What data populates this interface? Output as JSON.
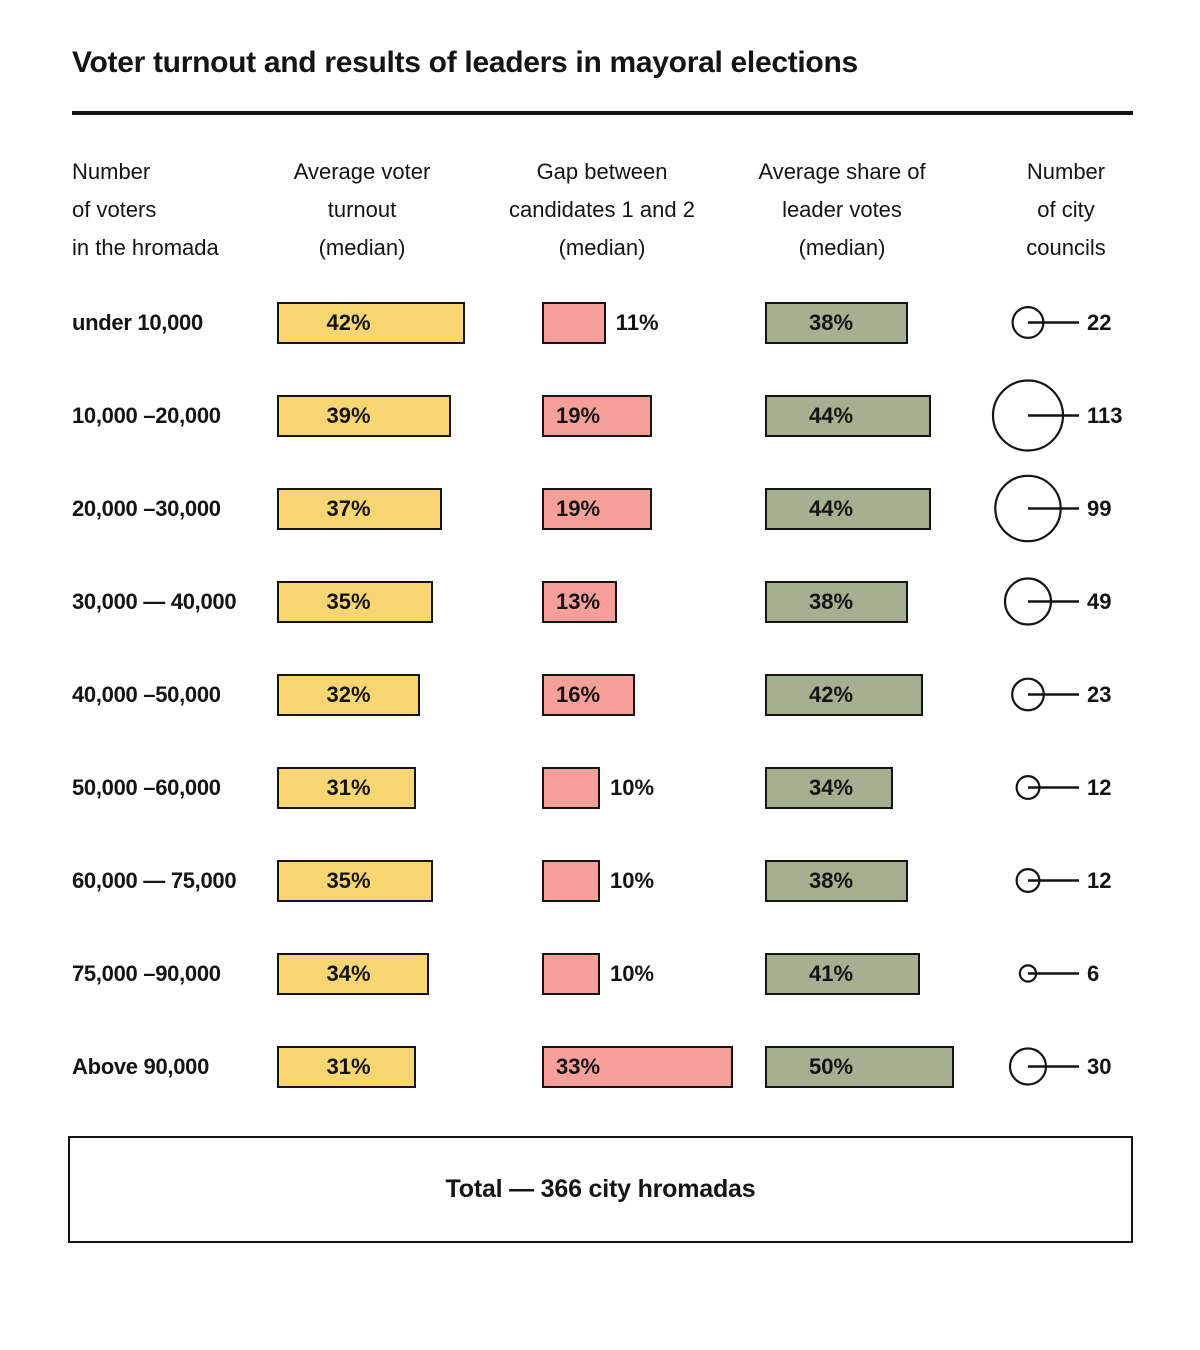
{
  "title": "Voter turnout and results of leaders in mayoral elections",
  "columns": [
    {
      "id": "voters",
      "lines": [
        "Number",
        "of voters",
        "in the hromada"
      ]
    },
    {
      "id": "turnout",
      "lines": [
        "Average voter",
        "turnout",
        "(median)"
      ]
    },
    {
      "id": "gap",
      "lines": [
        "Gap between",
        "candidates 1 and 2",
        "(median)"
      ]
    },
    {
      "id": "share",
      "lines": [
        "Average share of",
        "leader votes",
        "(median)"
      ]
    },
    {
      "id": "councils",
      "lines": [
        "Number",
        "of city",
        "councils"
      ]
    }
  ],
  "rows": [
    {
      "label": "under 10,000",
      "turnout": 42,
      "turnout_label": "42%",
      "gap": 11,
      "gap_label": "11%",
      "gap_label_outside": true,
      "share": 38,
      "share_label": "38%",
      "councils": 22,
      "councils_label": "22"
    },
    {
      "label": "10,000 –20,000",
      "turnout": 39,
      "turnout_label": "39%",
      "gap": 19,
      "gap_label": "19%",
      "gap_label_outside": false,
      "share": 44,
      "share_label": "44%",
      "councils": 113,
      "councils_label": "113"
    },
    {
      "label": "20,000 –30,000",
      "turnout": 37,
      "turnout_label": "37%",
      "gap": 19,
      "gap_label": "19%",
      "gap_label_outside": false,
      "share": 44,
      "share_label": "44%",
      "councils": 99,
      "councils_label": "99"
    },
    {
      "label": "30,000 — 40,000",
      "turnout": 35,
      "turnout_label": "35%",
      "gap": 13,
      "gap_label": "13%",
      "gap_label_outside": false,
      "share": 38,
      "share_label": "38%",
      "councils": 49,
      "councils_label": "49"
    },
    {
      "label": "40,000 –50,000",
      "turnout": 32,
      "turnout_label": "32%",
      "gap": 16,
      "gap_label": "16%",
      "gap_label_outside": false,
      "share": 42,
      "share_label": "42%",
      "councils": 23,
      "councils_label": "23"
    },
    {
      "label": "50,000 –60,000",
      "turnout": 31,
      "turnout_label": "31%",
      "gap": 10,
      "gap_label": "10%",
      "gap_label_outside": true,
      "share": 34,
      "share_label": "34%",
      "councils": 12,
      "councils_label": "12"
    },
    {
      "label": "60,000 — 75,000",
      "turnout": 35,
      "turnout_label": "35%",
      "gap": 10,
      "gap_label": "10%",
      "gap_label_outside": true,
      "share": 38,
      "share_label": "38%",
      "councils": 12,
      "councils_label": "12"
    },
    {
      "label": "75,000 –90,000",
      "turnout": 34,
      "turnout_label": "34%",
      "gap": 10,
      "gap_label": "10%",
      "gap_label_outside": true,
      "share": 41,
      "share_label": "41%",
      "councils": 6,
      "councils_label": "6"
    },
    {
      "label": "Above 90,000",
      "turnout": 31,
      "turnout_label": "31%",
      "gap": 33,
      "gap_label": "33%",
      "gap_label_outside": false,
      "share": 50,
      "share_label": "50%",
      "councils": 30,
      "councils_label": "30"
    }
  ],
  "total": {
    "label": "Total — 366 city hromadas"
  },
  "colors": {
    "turnout_fill": "#FAD672",
    "gap_fill": "#F7A099",
    "share_fill": "#A6AF90",
    "outline": "#141414",
    "background": "#FFFFFF"
  },
  "chart_data": {
    "type": "table",
    "title": "Voter turnout and results of leaders in mayoral elections",
    "categories": [
      "under 10,000",
      "10,000 –20,000",
      "20,000 –30,000",
      "30,000 — 40,000",
      "40,000 –50,000",
      "50,000 –60,000",
      "60,000 — 75,000",
      "75,000 –90,000",
      "Above 90,000"
    ],
    "categories_axis_label": "Number of voters in the hromada",
    "series": [
      {
        "name": "Average voter turnout (median)",
        "unit": "%",
        "type": "bar",
        "color": "#FAD672",
        "values": [
          42,
          39,
          37,
          35,
          32,
          31,
          35,
          34,
          31
        ]
      },
      {
        "name": "Gap between candidates 1 and 2 (median)",
        "unit": "%",
        "type": "bar",
        "color": "#F7A099",
        "values": [
          11,
          19,
          19,
          13,
          16,
          10,
          10,
          10,
          33
        ]
      },
      {
        "name": "Average share of leader votes (median)",
        "unit": "%",
        "type": "bar",
        "color": "#A6AF90",
        "values": [
          38,
          44,
          44,
          38,
          42,
          34,
          38,
          41,
          50
        ]
      },
      {
        "name": "Number of city councils",
        "type": "bubble",
        "color": "#FFFFFF",
        "values": [
          22,
          113,
          99,
          49,
          23,
          12,
          12,
          6,
          30
        ]
      }
    ],
    "annotations": [
      "Total — 366 city hromadas"
    ],
    "legend_position": "none",
    "grid": false
  }
}
